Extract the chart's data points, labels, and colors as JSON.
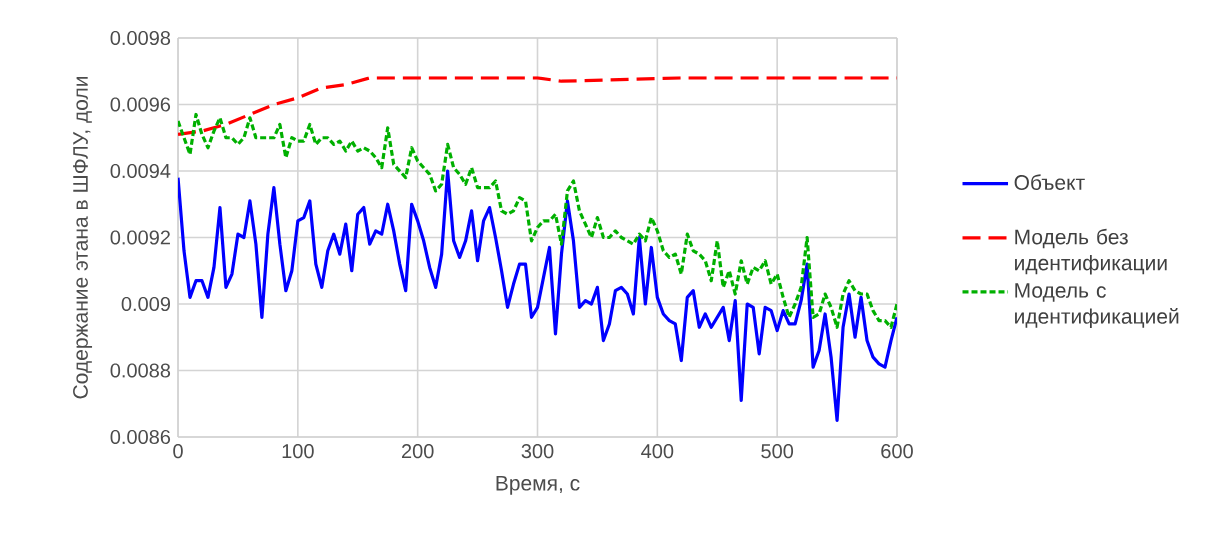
{
  "chart_data": {
    "type": "line",
    "xlabel": "Время, с",
    "ylabel": "Содержание этана в ШФЛУ, доли",
    "xlim": [
      0,
      600
    ],
    "xticks": [
      0,
      100,
      200,
      300,
      400,
      500,
      600
    ],
    "ylim": [
      0.0086,
      0.0098
    ],
    "yticks": [
      0.0086,
      0.0088,
      0.009,
      0.0092,
      0.0094,
      0.0096,
      0.0098
    ],
    "grid": true,
    "legend": "right",
    "series": [
      {
        "name": "Объект",
        "color": "#0000ff",
        "line_style": "solid",
        "x": [
          0,
          5,
          10,
          15,
          20,
          25,
          30,
          35,
          40,
          45,
          50,
          55,
          60,
          65,
          70,
          75,
          80,
          85,
          90,
          95,
          100,
          105,
          110,
          115,
          120,
          125,
          130,
          135,
          140,
          145,
          150,
          155,
          160,
          165,
          170,
          175,
          180,
          185,
          190,
          195,
          200,
          205,
          210,
          215,
          220,
          225,
          230,
          235,
          240,
          245,
          250,
          255,
          260,
          265,
          270,
          275,
          280,
          285,
          290,
          295,
          300,
          305,
          310,
          315,
          320,
          325,
          330,
          335,
          340,
          345,
          350,
          355,
          360,
          365,
          370,
          375,
          380,
          385,
          390,
          395,
          400,
          405,
          410,
          415,
          420,
          425,
          430,
          435,
          440,
          445,
          450,
          455,
          460,
          465,
          470,
          475,
          480,
          485,
          490,
          495,
          500,
          505,
          510,
          515,
          520,
          525,
          530,
          535,
          540,
          545,
          550,
          555,
          560,
          565,
          570,
          575,
          580,
          585,
          590,
          595,
          600
        ],
        "values": [
          0.00938,
          0.00916,
          0.00902,
          0.00907,
          0.00907,
          0.00902,
          0.00911,
          0.00929,
          0.00905,
          0.00909,
          0.00921,
          0.0092,
          0.00931,
          0.00918,
          0.00896,
          0.00921,
          0.00935,
          0.00918,
          0.00904,
          0.0091,
          0.00925,
          0.00926,
          0.00931,
          0.00912,
          0.00905,
          0.00916,
          0.00921,
          0.00915,
          0.00924,
          0.0091,
          0.00927,
          0.00929,
          0.00918,
          0.00922,
          0.00921,
          0.0093,
          0.00922,
          0.00912,
          0.00904,
          0.0093,
          0.00925,
          0.00919,
          0.00911,
          0.00905,
          0.00915,
          0.0094,
          0.00919,
          0.00914,
          0.00919,
          0.00928,
          0.00913,
          0.00925,
          0.00929,
          0.0092,
          0.0091,
          0.00899,
          0.00906,
          0.00912,
          0.00912,
          0.00896,
          0.00899,
          0.00908,
          0.00917,
          0.00891,
          0.00915,
          0.00931,
          0.00919,
          0.00899,
          0.00901,
          0.009,
          0.00905,
          0.00889,
          0.00894,
          0.00904,
          0.00905,
          0.00903,
          0.00897,
          0.0092,
          0.009,
          0.00917,
          0.00902,
          0.00897,
          0.00895,
          0.00894,
          0.00883,
          0.00902,
          0.00904,
          0.00893,
          0.00897,
          0.00893,
          0.00896,
          0.00899,
          0.00889,
          0.00901,
          0.00871,
          0.009,
          0.00899,
          0.00885,
          0.00899,
          0.00898,
          0.00892,
          0.00898,
          0.00894,
          0.00894,
          0.00901,
          0.00912,
          0.00881,
          0.00886,
          0.00897,
          0.00884,
          0.00865,
          0.00893,
          0.00903,
          0.0089,
          0.00902,
          0.00889,
          0.00884,
          0.00882,
          0.00881,
          0.00889,
          0.00896
        ]
      },
      {
        "name": "Модель без идентификации",
        "color": "#ff0000",
        "line_style": "dashed",
        "x": [
          0,
          20,
          40,
          60,
          80,
          100,
          120,
          140,
          160,
          180,
          300,
          320,
          420,
          600
        ],
        "values": [
          0.00951,
          0.00952,
          0.00954,
          0.00957,
          0.0096,
          0.00962,
          0.00965,
          0.00966,
          0.00968,
          0.00968,
          0.00968,
          0.00967,
          0.00968,
          0.00968
        ]
      },
      {
        "name": "Модель с идентификацией",
        "color": "#00b000",
        "line_style": "dotted",
        "x": [
          0,
          5,
          10,
          15,
          20,
          25,
          30,
          35,
          40,
          45,
          50,
          55,
          60,
          65,
          70,
          75,
          80,
          85,
          90,
          95,
          100,
          105,
          110,
          115,
          120,
          125,
          130,
          135,
          140,
          145,
          150,
          155,
          160,
          165,
          170,
          175,
          180,
          185,
          190,
          195,
          200,
          205,
          210,
          215,
          220,
          225,
          230,
          235,
          240,
          245,
          250,
          255,
          260,
          265,
          270,
          275,
          280,
          285,
          290,
          295,
          300,
          305,
          310,
          315,
          320,
          325,
          330,
          335,
          340,
          345,
          350,
          355,
          360,
          365,
          370,
          375,
          380,
          385,
          390,
          395,
          400,
          405,
          410,
          415,
          420,
          425,
          430,
          435,
          440,
          445,
          450,
          455,
          460,
          465,
          470,
          475,
          480,
          485,
          490,
          495,
          500,
          505,
          510,
          515,
          520,
          525,
          530,
          535,
          540,
          545,
          550,
          555,
          560,
          565,
          570,
          575,
          580,
          585,
          590,
          595,
          600
        ],
        "values": [
          0.00955,
          0.0095,
          0.00945,
          0.00957,
          0.00951,
          0.00947,
          0.00952,
          0.00956,
          0.0095,
          0.0095,
          0.00948,
          0.0095,
          0.00956,
          0.0095,
          0.0095,
          0.0095,
          0.0095,
          0.00954,
          0.00944,
          0.0095,
          0.00949,
          0.00949,
          0.00954,
          0.00948,
          0.0095,
          0.0095,
          0.00948,
          0.00949,
          0.00946,
          0.00949,
          0.00946,
          0.00947,
          0.00946,
          0.00944,
          0.00941,
          0.00953,
          0.00942,
          0.0094,
          0.00938,
          0.00947,
          0.00943,
          0.00941,
          0.00939,
          0.00934,
          0.00936,
          0.00948,
          0.00941,
          0.00939,
          0.00936,
          0.00941,
          0.00935,
          0.00935,
          0.00935,
          0.00937,
          0.00928,
          0.00927,
          0.00928,
          0.00932,
          0.00931,
          0.00919,
          0.00923,
          0.00925,
          0.00925,
          0.00927,
          0.00918,
          0.00934,
          0.00937,
          0.00928,
          0.00924,
          0.0092,
          0.00926,
          0.0092,
          0.0092,
          0.00922,
          0.0092,
          0.00919,
          0.00918,
          0.00921,
          0.00919,
          0.00926,
          0.00922,
          0.00916,
          0.00914,
          0.00915,
          0.00909,
          0.00921,
          0.00916,
          0.00915,
          0.00913,
          0.00907,
          0.00919,
          0.00905,
          0.0091,
          0.00903,
          0.00913,
          0.00906,
          0.00911,
          0.0091,
          0.00913,
          0.00906,
          0.00909,
          0.00902,
          0.00896,
          0.009,
          0.00905,
          0.0092,
          0.00896,
          0.00897,
          0.00903,
          0.00899,
          0.00893,
          0.00903,
          0.00907,
          0.00904,
          0.00903,
          0.00903,
          0.00898,
          0.00895,
          0.00895,
          0.00893,
          0.009
        ]
      }
    ]
  }
}
